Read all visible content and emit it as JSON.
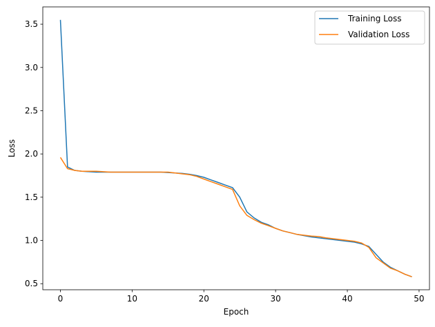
{
  "chart_data": {
    "type": "line",
    "title": "",
    "xlabel": "Epoch",
    "ylabel": "Loss",
    "xlim": [
      -2.45,
      51.45
    ],
    "ylim": [
      0.43,
      3.7
    ],
    "xticks": [
      0,
      10,
      20,
      30,
      40,
      50
    ],
    "yticks": [
      0.5,
      1.0,
      1.5,
      2.0,
      2.5,
      3.0,
      3.5
    ],
    "xtick_labels": [
      "0",
      "10",
      "20",
      "30",
      "40",
      "50"
    ],
    "ytick_labels": [
      "0.5",
      "1.0",
      "1.5",
      "2.0",
      "2.5",
      "3.0",
      "3.5"
    ],
    "grid": false,
    "legend": "top-right",
    "x": [
      0,
      1,
      2,
      3,
      4,
      5,
      6,
      7,
      8,
      9,
      10,
      11,
      12,
      13,
      14,
      15,
      16,
      17,
      18,
      19,
      20,
      21,
      22,
      23,
      24,
      25,
      26,
      27,
      28,
      29,
      30,
      31,
      32,
      33,
      34,
      35,
      36,
      37,
      38,
      39,
      40,
      41,
      42,
      43,
      44,
      45,
      46,
      47,
      48,
      49
    ],
    "series": [
      {
        "name": "Training Loss",
        "color": "#1f77b4",
        "values": [
          3.55,
          1.85,
          1.81,
          1.8,
          1.795,
          1.79,
          1.79,
          1.79,
          1.79,
          1.79,
          1.79,
          1.79,
          1.79,
          1.79,
          1.79,
          1.785,
          1.78,
          1.775,
          1.765,
          1.75,
          1.73,
          1.7,
          1.67,
          1.64,
          1.61,
          1.5,
          1.33,
          1.26,
          1.21,
          1.18,
          1.14,
          1.11,
          1.09,
          1.07,
          1.055,
          1.04,
          1.03,
          1.02,
          1.01,
          1.0,
          0.99,
          0.98,
          0.96,
          0.93,
          0.84,
          0.75,
          0.69,
          0.65,
          0.61,
          0.58
        ]
      },
      {
        "name": "Validation Loss",
        "color": "#ff7f0e",
        "values": [
          1.96,
          1.83,
          1.81,
          1.8,
          1.8,
          1.8,
          1.795,
          1.79,
          1.79,
          1.79,
          1.79,
          1.79,
          1.79,
          1.79,
          1.79,
          1.79,
          1.78,
          1.77,
          1.76,
          1.74,
          1.71,
          1.68,
          1.65,
          1.62,
          1.59,
          1.4,
          1.29,
          1.24,
          1.2,
          1.17,
          1.14,
          1.11,
          1.09,
          1.07,
          1.06,
          1.05,
          1.045,
          1.03,
          1.02,
          1.01,
          1.0,
          0.99,
          0.97,
          0.92,
          0.8,
          0.74,
          0.68,
          0.65,
          0.61,
          0.58
        ]
      }
    ]
  }
}
